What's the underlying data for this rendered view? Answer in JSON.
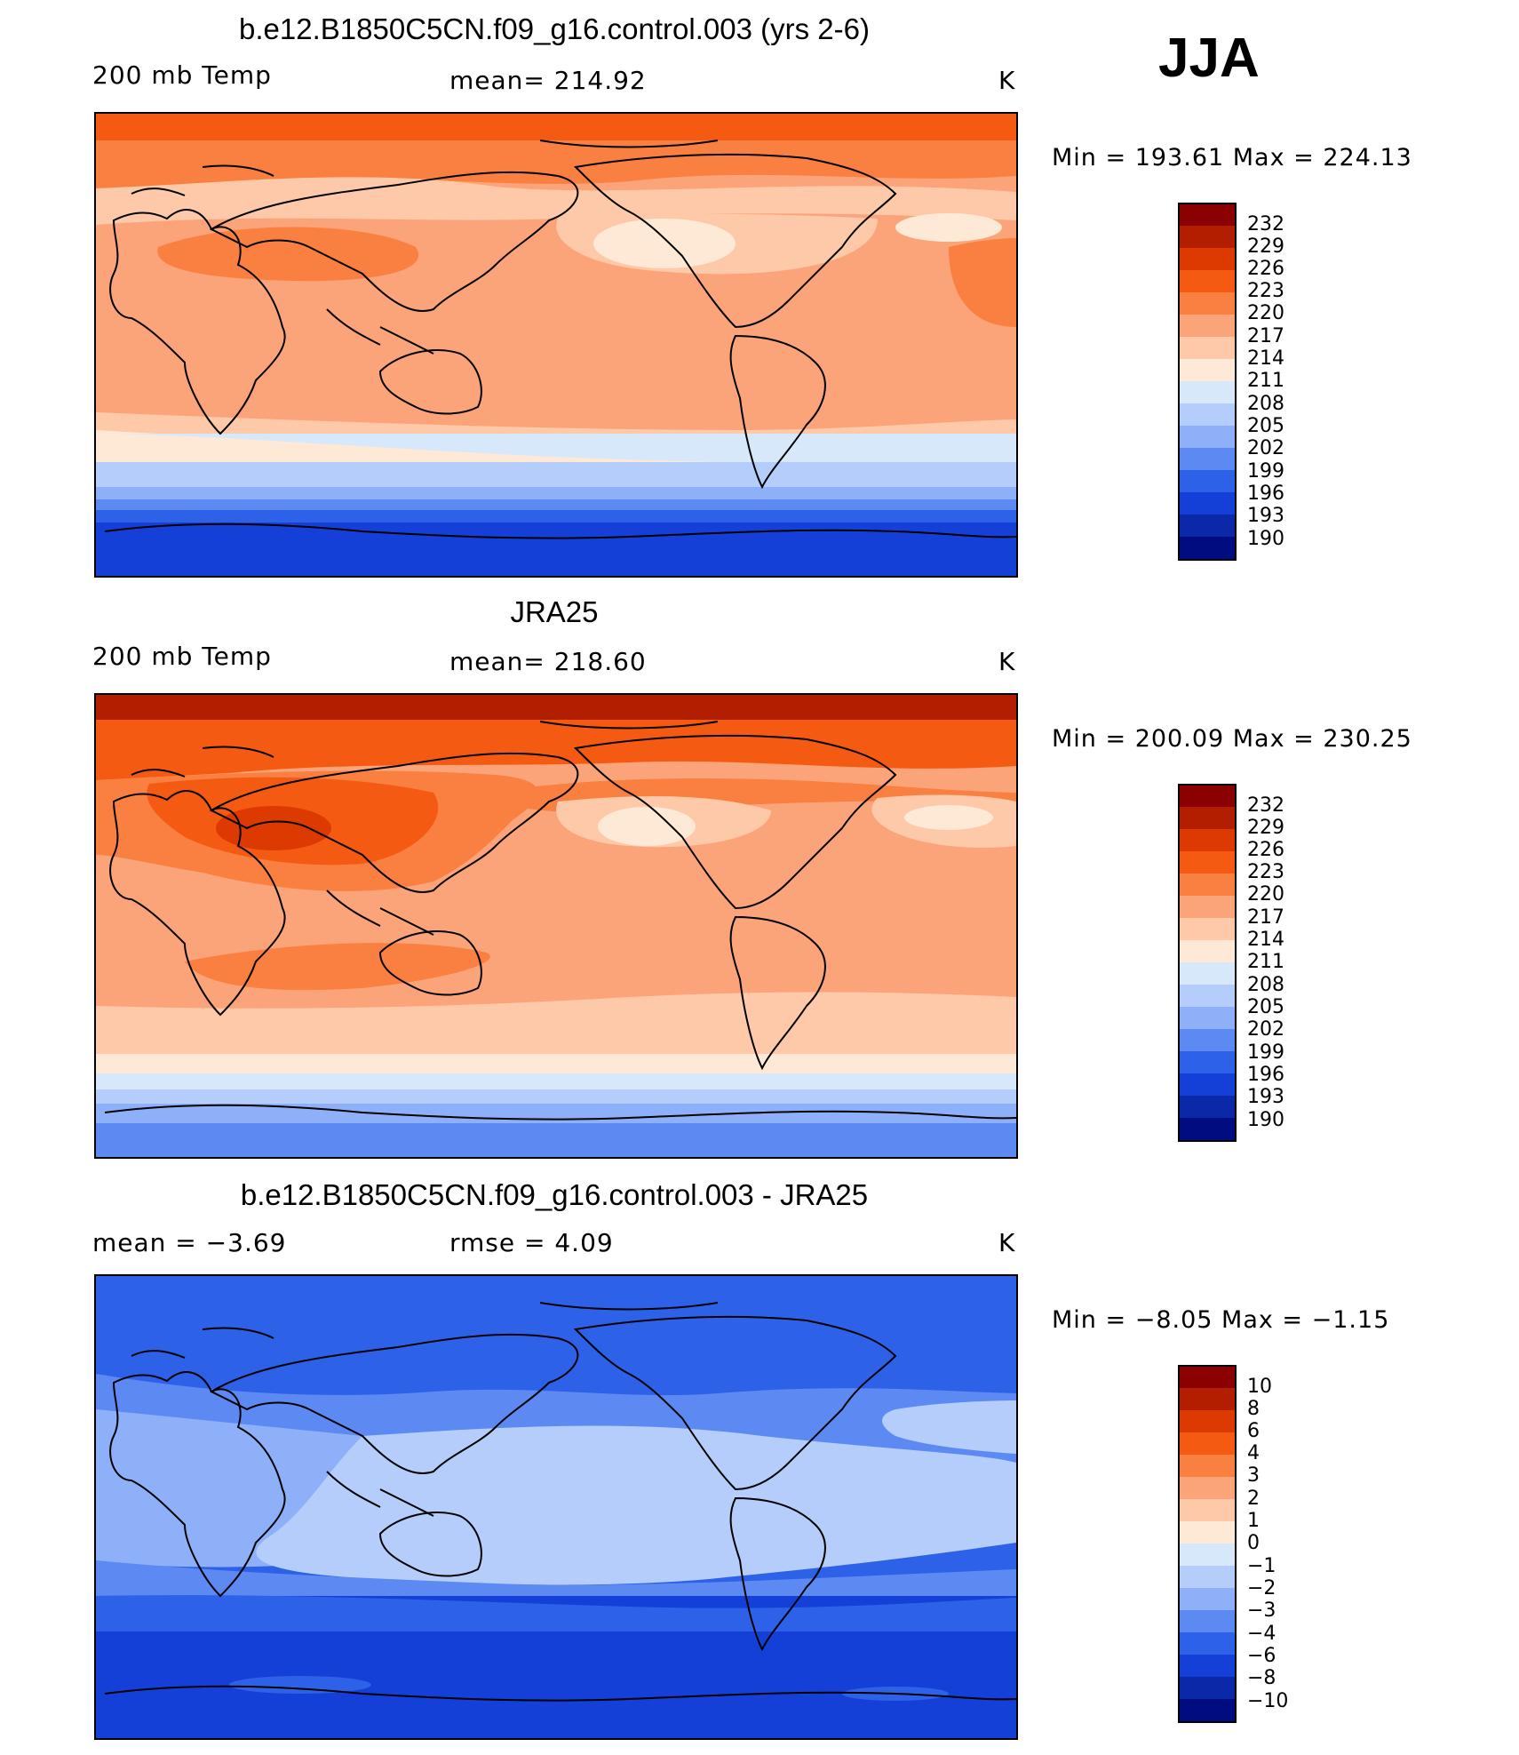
{
  "season": "JJA",
  "panels": [
    {
      "title": "b.e12.B1850C5CN.f09_g16.control.003 (yrs 2-6)",
      "left_label": "200 mb Temp",
      "center_label": "mean=  214.92",
      "unit": "K",
      "stats": "Min  =  193.61  Max  =  224.13",
      "colorbar": [
        "232",
        "229",
        "226",
        "223",
        "220",
        "217",
        "214",
        "211",
        "208",
        "205",
        "202",
        "199",
        "196",
        "193",
        "190"
      ]
    },
    {
      "title": "JRA25",
      "left_label": "200 mb Temp",
      "center_label": "mean=  218.60",
      "unit": "K",
      "stats": "Min  =  200.09  Max  =  230.25",
      "colorbar": [
        "232",
        "229",
        "226",
        "223",
        "220",
        "217",
        "214",
        "211",
        "208",
        "205",
        "202",
        "199",
        "196",
        "193",
        "190"
      ]
    },
    {
      "title": "b.e12.B1850C5CN.f09_g16.control.003 - JRA25",
      "left_label": "mean  =     −3.69",
      "center_label": "rmse  =     4.09",
      "unit": "K",
      "stats": "Min  =    −8.05  Max  =    −1.15",
      "colorbar": [
        "10",
        "8",
        "6",
        "4",
        "3",
        "2",
        "1",
        "0",
        "−1",
        "−2",
        "−3",
        "−4",
        "−6",
        "−8",
        "−10"
      ]
    }
  ],
  "colors": {
    "scale": [
      "#8b0000",
      "#b21e00",
      "#dc3a00",
      "#f55a12",
      "#f98040",
      "#fba47a",
      "#fdc9a8",
      "#fee9d6",
      "#d8e8fb",
      "#b4cdfa",
      "#8eb0f8",
      "#5d89f2",
      "#2d61e8",
      "#1440d8",
      "#0b28a8",
      "#000c80"
    ],
    "coast": "#000000"
  }
}
